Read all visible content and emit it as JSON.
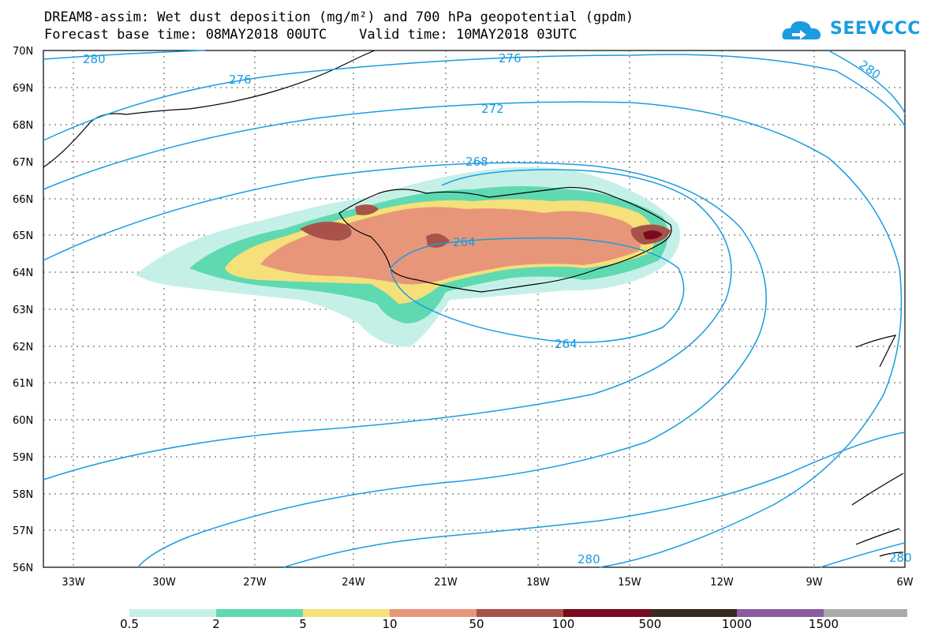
{
  "title": {
    "line1": "DREAM8-assim: Wet dust deposition (mg/m²) and 700 hPa geopotential (gpdm)",
    "line2": "Forecast base time: 08MAY2018 00UTC    Valid time: 10MAY2018 03UTC"
  },
  "logo": {
    "text": "SEEVCCC",
    "icon": "cloud-logo-icon",
    "color": "#1a9ce0"
  },
  "map": {
    "lat_labels": [
      "70N",
      "69N",
      "68N",
      "67N",
      "66N",
      "65N",
      "64N",
      "63N",
      "62N",
      "61N",
      "60N",
      "59N",
      "58N",
      "57N",
      "56N"
    ],
    "lon_labels": [
      "33W",
      "30W",
      "27W",
      "24W",
      "21W",
      "18W",
      "15W",
      "12W",
      "9W",
      "6W"
    ],
    "contour_color": "#1a9ce0",
    "contour_labels": [
      "280",
      "276",
      "276",
      "280",
      "272",
      "268",
      "264",
      "264",
      "280",
      "280"
    ]
  },
  "colorbar": {
    "labels": [
      "0.5",
      "2",
      "5",
      "10",
      "50",
      "100",
      "500",
      "1000",
      "1500"
    ],
    "colors": [
      "#c5f0e8",
      "#5fd9b0",
      "#f5e07a",
      "#e8967a",
      "#a8524a",
      "#7a0a1e",
      "#3a2a1e",
      "#8a5aa0",
      "#aaaaaa"
    ]
  }
}
